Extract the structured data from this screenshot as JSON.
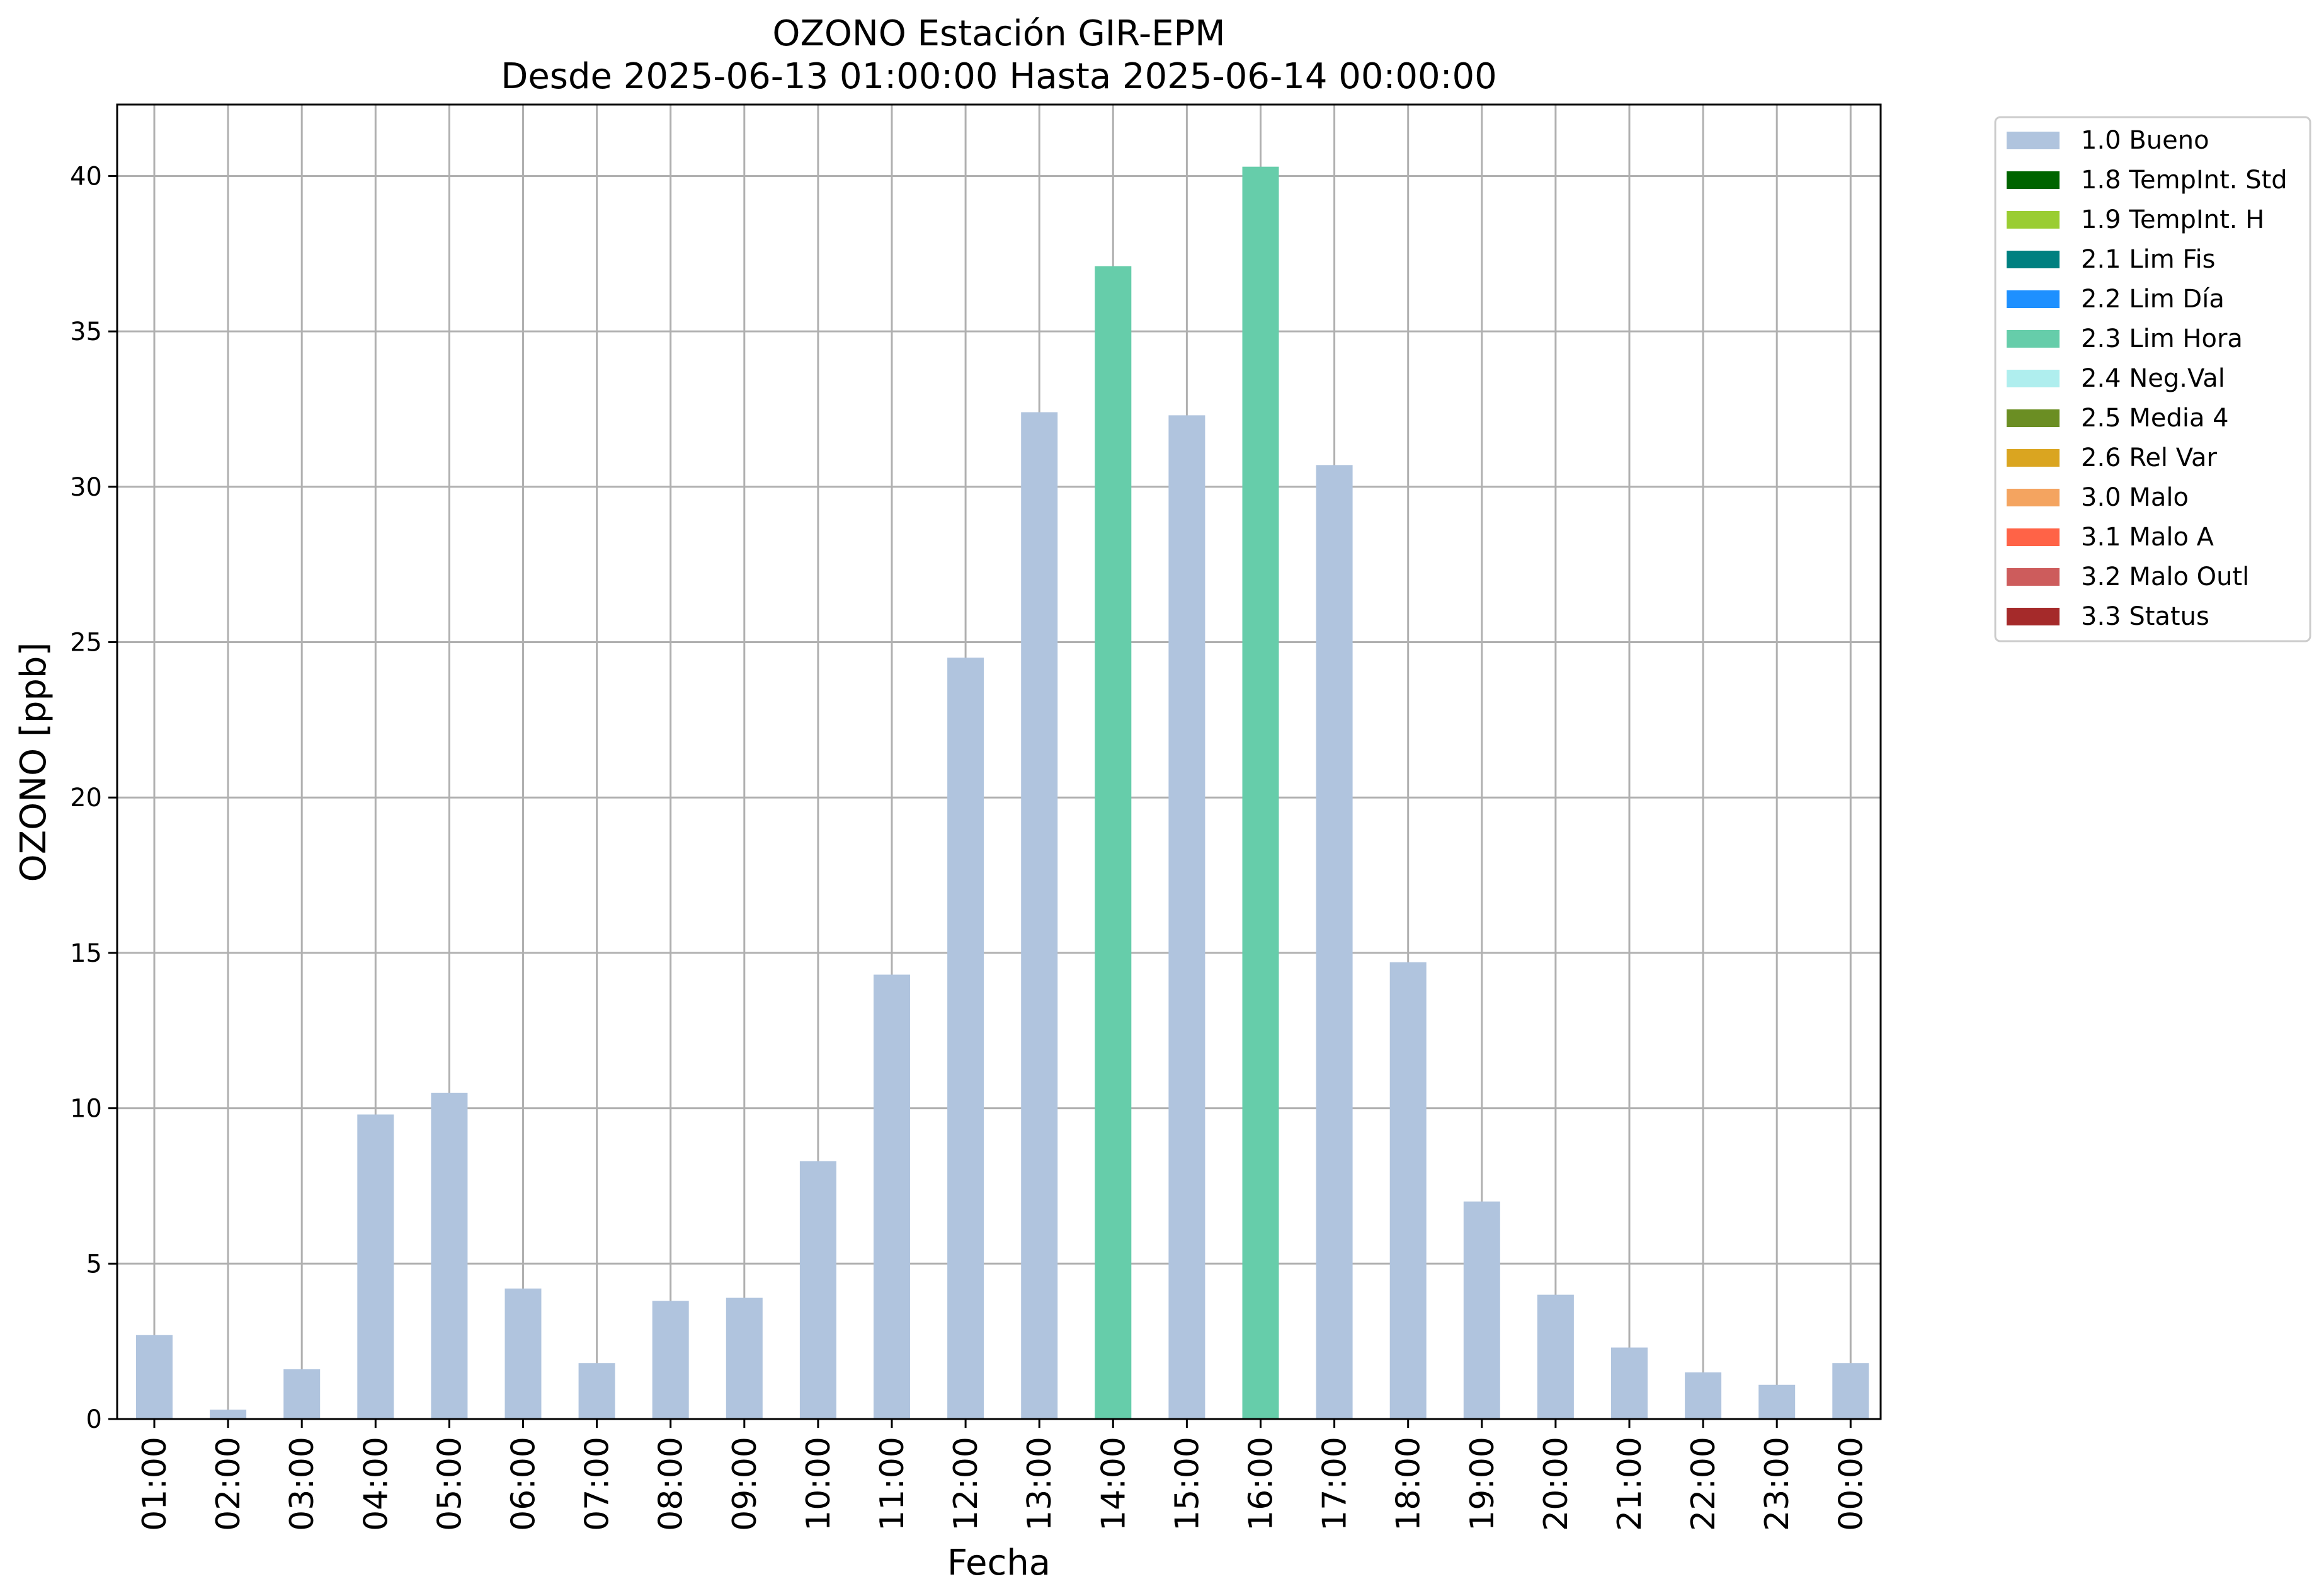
{
  "chart_data": {
    "type": "bar",
    "title": "OZONO Estación GIR-EPM",
    "subtitle": "Desde 2025-06-13 01:00:00 Hasta 2025-06-14 00:00:00",
    "xlabel": "Fecha",
    "ylabel": "OZONO [ppb]",
    "ylim": [
      0,
      42.3
    ],
    "yticks": [
      "0",
      "5",
      "10",
      "15",
      "20",
      "25",
      "30",
      "35",
      "40"
    ],
    "grid": true,
    "legend_position": "outside-top-right",
    "categories": [
      "01:00",
      "02:00",
      "03:00",
      "04:00",
      "05:00",
      "06:00",
      "07:00",
      "08:00",
      "09:00",
      "10:00",
      "11:00",
      "12:00",
      "13:00",
      "14:00",
      "15:00",
      "16:00",
      "17:00",
      "18:00",
      "19:00",
      "20:00",
      "21:00",
      "22:00",
      "23:00",
      "00:00"
    ],
    "values": [
      2.7,
      0.3,
      1.6,
      9.8,
      10.5,
      4.2,
      1.8,
      3.8,
      3.9,
      8.3,
      14.3,
      24.5,
      32.4,
      37.1,
      32.3,
      40.3,
      30.7,
      14.7,
      7.0,
      4.0,
      2.3,
      1.5,
      1.1,
      1.8
    ],
    "flags": [
      "1.0 Bueno",
      "1.0 Bueno",
      "1.0 Bueno",
      "1.0 Bueno",
      "1.0 Bueno",
      "1.0 Bueno",
      "1.0 Bueno",
      "1.0 Bueno",
      "1.0 Bueno",
      "1.0 Bueno",
      "1.0 Bueno",
      "1.0 Bueno",
      "1.0 Bueno",
      "2.3 Lim Hora",
      "1.0 Bueno",
      "2.3 Lim Hora",
      "1.0 Bueno",
      "1.0 Bueno",
      "1.0 Bueno",
      "1.0 Bueno",
      "1.0 Bueno",
      "1.0 Bueno",
      "1.0 Bueno",
      "1.0 Bueno"
    ],
    "legend": [
      {
        "label": "1.0 Bueno",
        "color": "#b0c4de"
      },
      {
        "label": "1.8 TempInt. Std",
        "color": "#006400"
      },
      {
        "label": "1.9 TempInt. H",
        "color": "#9acd32"
      },
      {
        "label": "2.1 Lim Fis",
        "color": "#008080"
      },
      {
        "label": "2.2 Lim Día",
        "color": "#1e90ff"
      },
      {
        "label": "2.3 Lim Hora",
        "color": "#66cdaa"
      },
      {
        "label": "2.4 Neg.Val",
        "color": "#afeeee"
      },
      {
        "label": "2.5 Media 4",
        "color": "#6b8e23"
      },
      {
        "label": "2.6 Rel Var",
        "color": "#daa520"
      },
      {
        "label": "3.0 Malo",
        "color": "#f4a460"
      },
      {
        "label": "3.1 Malo A",
        "color": "#ff6347"
      },
      {
        "label": "3.2 Malo Outl",
        "color": "#cd5c5c"
      },
      {
        "label": "3.3 Status",
        "color": "#a52a2a"
      }
    ]
  }
}
